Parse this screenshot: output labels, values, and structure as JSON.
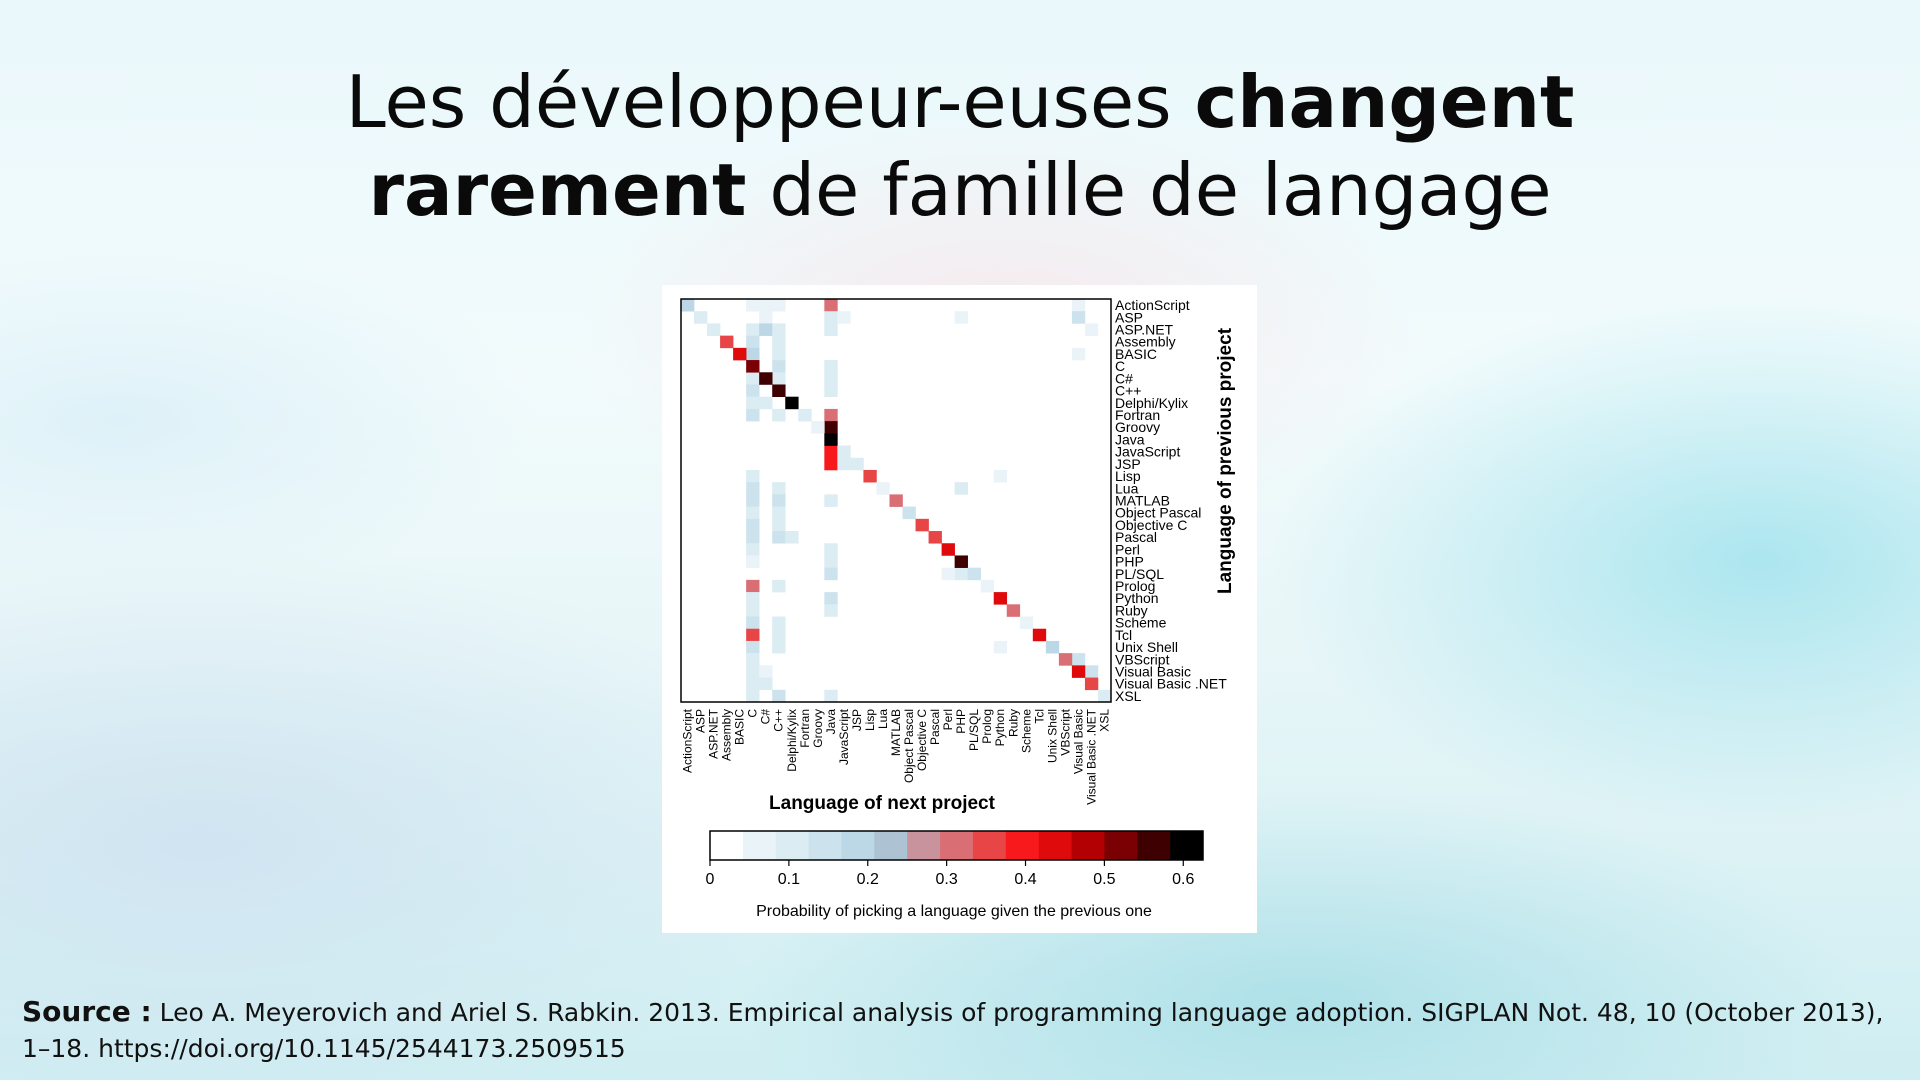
{
  "slide": {
    "title_part1": "Les développeur-euses ",
    "title_bold1": "changent",
    "title_bold2": "rarement",
    "title_part2": " de famille de langage",
    "source_label": "Source :",
    "source_text": " Leo A. Meyerovich and Ariel S. Rabkin. 2013. Empirical analysis of programming language adoption. SIGPLAN Not. 48, 10 (October 2013), 1–18. https://doi.org/10.1145/2544173.2509515"
  },
  "chart_data": {
    "type": "heatmap",
    "title": "",
    "xlabel": "Language of next project",
    "ylabel": "Language of previous project",
    "languages": [
      "ActionScript",
      "ASP",
      "ASP.NET",
      "Assembly",
      "BASIC",
      "C",
      "C#",
      "C++",
      "Delphi/Kylix",
      "Fortran",
      "Groovy",
      "Java",
      "JavaScript",
      "JSP",
      "Lisp",
      "Lua",
      "MATLAB",
      "Object Pascal",
      "Objective C",
      "Pascal",
      "Perl",
      "PHP",
      "PL/SQL",
      "Prolog",
      "Python",
      "Ruby",
      "Scheme",
      "Tcl",
      "Unix Shell",
      "VBScript",
      "Visual Basic",
      "Visual Basic .NET",
      "XSL"
    ],
    "diagonal": [
      0.2,
      0.1,
      0.1,
      0.35,
      0.45,
      0.5,
      0.55,
      0.55,
      0.6,
      0.1,
      0.05,
      0.65,
      0.1,
      0.1,
      0.35,
      0.05,
      0.3,
      0.15,
      0.35,
      0.35,
      0.45,
      0.55,
      0.15,
      0.05,
      0.45,
      0.3,
      0.05,
      0.45,
      0.2,
      0.3,
      0.45,
      0.35,
      0.1
    ],
    "off_diagonal": [
      {
        "row": "ActionScript",
        "col": "C",
        "value": 0.05
      },
      {
        "row": "ActionScript",
        "col": "C#",
        "value": 0.05
      },
      {
        "row": "ActionScript",
        "col": "C++",
        "value": 0.05
      },
      {
        "row": "ActionScript",
        "col": "Java",
        "value": 0.3
      },
      {
        "row": "ActionScript",
        "col": "Visual Basic",
        "value": 0.05
      },
      {
        "row": "ASP",
        "col": "C#",
        "value": 0.05
      },
      {
        "row": "ASP",
        "col": "Java",
        "value": 0.1
      },
      {
        "row": "ASP",
        "col": "JavaScript",
        "value": 0.05
      },
      {
        "row": "ASP",
        "col": "PHP",
        "value": 0.05
      },
      {
        "row": "ASP",
        "col": "Visual Basic",
        "value": 0.15
      },
      {
        "row": "ASP.NET",
        "col": "C",
        "value": 0.1
      },
      {
        "row": "ASP.NET",
        "col": "C#",
        "value": 0.2
      },
      {
        "row": "ASP.NET",
        "col": "C++",
        "value": 0.1
      },
      {
        "row": "ASP.NET",
        "col": "Java",
        "value": 0.1
      },
      {
        "row": "ASP.NET",
        "col": "Visual Basic .NET",
        "value": 0.05
      },
      {
        "row": "Assembly",
        "col": "C",
        "value": 0.15
      },
      {
        "row": "Assembly",
        "col": "C++",
        "value": 0.1
      },
      {
        "row": "BASIC",
        "col": "C",
        "value": 0.2
      },
      {
        "row": "BASIC",
        "col": "C++",
        "value": 0.1
      },
      {
        "row": "BASIC",
        "col": "Visual Basic",
        "value": 0.05
      },
      {
        "row": "C",
        "col": "C++",
        "value": 0.15
      },
      {
        "row": "C",
        "col": "Java",
        "value": 0.1
      },
      {
        "row": "C#",
        "col": "C",
        "value": 0.1
      },
      {
        "row": "C#",
        "col": "C++",
        "value": 0.1
      },
      {
        "row": "C#",
        "col": "Java",
        "value": 0.1
      },
      {
        "row": "C++",
        "col": "C",
        "value": 0.15
      },
      {
        "row": "C++",
        "col": "Java",
        "value": 0.1
      },
      {
        "row": "Delphi/Kylix",
        "col": "C",
        "value": 0.1
      },
      {
        "row": "Delphi/Kylix",
        "col": "C#",
        "value": 0.1
      },
      {
        "row": "Fortran",
        "col": "C",
        "value": 0.15
      },
      {
        "row": "Fortran",
        "col": "C++",
        "value": 0.1
      },
      {
        "row": "Fortran",
        "col": "Java",
        "value": 0.3
      },
      {
        "row": "Groovy",
        "col": "Java",
        "value": 0.55
      },
      {
        "row": "JavaScript",
        "col": "Java",
        "value": 0.4
      },
      {
        "row": "JSP",
        "col": "Java",
        "value": 0.4
      },
      {
        "row": "JSP",
        "col": "JavaScript",
        "value": 0.1
      },
      {
        "row": "Lisp",
        "col": "C",
        "value": 0.1
      },
      {
        "row": "Lisp",
        "col": "Python",
        "value": 0.05
      },
      {
        "row": "Lua",
        "col": "C",
        "value": 0.15
      },
      {
        "row": "Lua",
        "col": "C++",
        "value": 0.1
      },
      {
        "row": "Lua",
        "col": "PHP",
        "value": 0.1
      },
      {
        "row": "MATLAB",
        "col": "C",
        "value": 0.15
      },
      {
        "row": "MATLAB",
        "col": "C++",
        "value": 0.15
      },
      {
        "row": "MATLAB",
        "col": "Java",
        "value": 0.1
      },
      {
        "row": "Object Pascal",
        "col": "C",
        "value": 0.1
      },
      {
        "row": "Object Pascal",
        "col": "C++",
        "value": 0.1
      },
      {
        "row": "Objective C",
        "col": "C",
        "value": 0.15
      },
      {
        "row": "Objective C",
        "col": "C++",
        "value": 0.1
      },
      {
        "row": "Pascal",
        "col": "C",
        "value": 0.15
      },
      {
        "row": "Pascal",
        "col": "C++",
        "value": 0.15
      },
      {
        "row": "Pascal",
        "col": "Delphi/Kylix",
        "value": 0.1
      },
      {
        "row": "Perl",
        "col": "C",
        "value": 0.1
      },
      {
        "row": "Perl",
        "col": "Java",
        "value": 0.1
      },
      {
        "row": "PHP",
        "col": "C",
        "value": 0.05
      },
      {
        "row": "PHP",
        "col": "Java",
        "value": 0.1
      },
      {
        "row": "PL/SQL",
        "col": "Java",
        "value": 0.15
      },
      {
        "row": "PL/SQL",
        "col": "PHP",
        "value": 0.1
      },
      {
        "row": "PL/SQL",
        "col": "Perl",
        "value": 0.05
      },
      {
        "row": "Prolog",
        "col": "C",
        "value": 0.3
      },
      {
        "row": "Prolog",
        "col": "C++",
        "value": 0.1
      },
      {
        "row": "Python",
        "col": "C",
        "value": 0.1
      },
      {
        "row": "Python",
        "col": "Java",
        "value": 0.15
      },
      {
        "row": "Ruby",
        "col": "C",
        "value": 0.1
      },
      {
        "row": "Ruby",
        "col": "Java",
        "value": 0.1
      },
      {
        "row": "Scheme",
        "col": "C",
        "value": 0.15
      },
      {
        "row": "Scheme",
        "col": "C++",
        "value": 0.1
      },
      {
        "row": "Tcl",
        "col": "C",
        "value": 0.35
      },
      {
        "row": "Tcl",
        "col": "C++",
        "value": 0.1
      },
      {
        "row": "Unix Shell",
        "col": "C",
        "value": 0.15
      },
      {
        "row": "Unix Shell",
        "col": "C++",
        "value": 0.1
      },
      {
        "row": "Unix Shell",
        "col": "Python",
        "value": 0.05
      },
      {
        "row": "VBScript",
        "col": "C",
        "value": 0.1
      },
      {
        "row": "VBScript",
        "col": "Visual Basic",
        "value": 0.15
      },
      {
        "row": "Visual Basic",
        "col": "C",
        "value": 0.1
      },
      {
        "row": "Visual Basic",
        "col": "C#",
        "value": 0.05
      },
      {
        "row": "Visual Basic",
        "col": "Visual Basic .NET",
        "value": 0.15
      },
      {
        "row": "Visual Basic .NET",
        "col": "C",
        "value": 0.1
      },
      {
        "row": "Visual Basic .NET",
        "col": "C#",
        "value": 0.1
      },
      {
        "row": "XSL",
        "col": "C",
        "value": 0.1
      },
      {
        "row": "XSL",
        "col": "C++",
        "value": 0.15
      },
      {
        "row": "XSL",
        "col": "Java",
        "value": 0.1
      }
    ],
    "colorbar": {
      "label": "Probability of picking a language given the previous one",
      "ticks": [
        "0",
        "0.1",
        "0.2",
        "0.3",
        "0.4",
        "0.5",
        "0.6"
      ],
      "range": [
        0,
        0.625
      ],
      "bins": [
        "#ffffff",
        "#eaf3f7",
        "#dbecf3",
        "#cce3ee",
        "#bcd7e6",
        "#adc2d2",
        "#c8939d",
        "#d96e74",
        "#e84646",
        "#f8191d",
        "#de0a0c",
        "#b30002",
        "#7a0003",
        "#3e0000",
        "#000000"
      ]
    }
  }
}
